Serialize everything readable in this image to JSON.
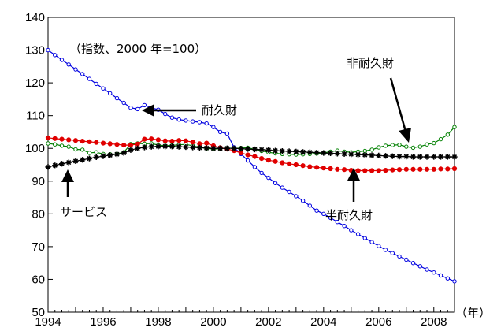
{
  "chart_data": {
    "type": "line",
    "subtitle": "（指数、2000 年=100）",
    "xlabel": "（年）",
    "ylim": [
      50,
      140
    ],
    "y_ticks": [
      50,
      60,
      70,
      80,
      90,
      100,
      110,
      120,
      130,
      140
    ],
    "x_tick_labels": [
      "1994",
      "1996",
      "1998",
      "2000",
      "2002",
      "2004",
      "2006",
      "2008"
    ],
    "xlim": [
      1994,
      2008.75
    ],
    "grid": false,
    "series": [
      {
        "name": "耐久財",
        "color": "#0000e0",
        "marker": "open-circle",
        "start": 1994.0,
        "step": 0.25,
        "values": [
          130,
          128.5,
          127,
          125.6,
          124.1,
          122.7,
          121.2,
          119.7,
          118.3,
          116.8,
          115.3,
          113.9,
          112.4,
          112,
          113.2,
          112.4,
          111.8,
          110.5,
          109.4,
          108.8,
          108.5,
          108.2,
          108,
          107.6,
          106.5,
          105,
          104.5,
          100.3,
          98.3,
          96.3,
          94.3,
          92.5,
          91,
          89.4,
          88,
          86.7,
          85.4,
          84,
          82.5,
          81,
          80,
          78.8,
          77.5,
          76.3,
          75,
          73.8,
          72.6,
          71.4,
          70.2,
          69,
          68,
          67,
          66,
          65,
          64,
          63,
          62.1,
          61.2,
          60.3,
          59.4
        ]
      },
      {
        "name": "非耐久財",
        "color": "#008000",
        "marker": "open-circle",
        "start": 1994.0,
        "step": 0.25,
        "values": [
          101.5,
          101.2,
          100.8,
          100.5,
          99.7,
          99.6,
          98.6,
          98.8,
          98.3,
          98.2,
          98.3,
          98.8,
          101.3,
          101.5,
          101.4,
          101.5,
          101,
          100.8,
          100.9,
          101.1,
          101.2,
          100.8,
          100.3,
          100,
          99.8,
          99.9,
          100.1,
          100,
          100.1,
          100.2,
          99.7,
          99.2,
          98.8,
          98.5,
          98.3,
          98.2,
          98.1,
          98.2,
          98.3,
          98.4,
          98.6,
          99,
          99.3,
          99,
          98.8,
          99,
          99.2,
          99.6,
          100.3,
          100.8,
          101,
          101.1,
          100.5,
          100.2,
          100.5,
          101.2,
          101.6,
          102.8,
          104.2,
          106.5
        ]
      },
      {
        "name": "半耐久財",
        "color": "#e00000",
        "marker": "filled-circle",
        "start": 1994.0,
        "step": 0.25,
        "values": [
          103.2,
          103,
          102.8,
          102.6,
          102.4,
          102.2,
          102,
          101.8,
          101.6,
          101.4,
          101.2,
          101,
          101,
          101.3,
          102.8,
          102.9,
          102.6,
          102.3,
          102.2,
          102.4,
          102.3,
          101.9,
          101.4,
          101.6,
          100.8,
          100.2,
          99.8,
          99.3,
          98.6,
          98,
          97.5,
          96.9,
          96.4,
          96,
          95.6,
          95.3,
          95,
          94.7,
          94.4,
          94.2,
          94,
          93.8,
          93.6,
          93.5,
          93.3,
          93.2,
          93.2,
          93.2,
          93.2,
          93.3,
          93.4,
          93.5,
          93.6,
          93.6,
          93.6,
          93.6,
          93.6,
          93.7,
          93.7,
          93.8
        ]
      },
      {
        "name": "サービス",
        "color": "#000000",
        "marker": "star",
        "start": 1994.0,
        "step": 0.25,
        "values": [
          94.3,
          94.8,
          95.3,
          95.7,
          96.1,
          96.5,
          96.9,
          97.3,
          97.6,
          97.9,
          98.2,
          98.6,
          99.5,
          100,
          100.3,
          100.5,
          100.6,
          100.6,
          100.6,
          100.5,
          100.4,
          100.3,
          100.2,
          100.1,
          100,
          100,
          100,
          100,
          99.9,
          99.8,
          99.7,
          99.6,
          99.5,
          99.3,
          99.2,
          99.1,
          99,
          98.9,
          98.8,
          98.7,
          98.6,
          98.5,
          98.4,
          98.3,
          98.2,
          98.1,
          98,
          97.9,
          97.8,
          97.7,
          97.6,
          97.5,
          97.5,
          97.4,
          97.4,
          97.4,
          97.4,
          97.4,
          97.4,
          97.4
        ]
      }
    ],
    "annotations": [
      {
        "name": "耐久財",
        "label": "耐久財"
      },
      {
        "name": "非耐久財",
        "label": "非耐久財"
      },
      {
        "name": "半耐久財",
        "label": "半耐久財"
      },
      {
        "name": "サービス",
        "label": "サービス"
      }
    ]
  }
}
